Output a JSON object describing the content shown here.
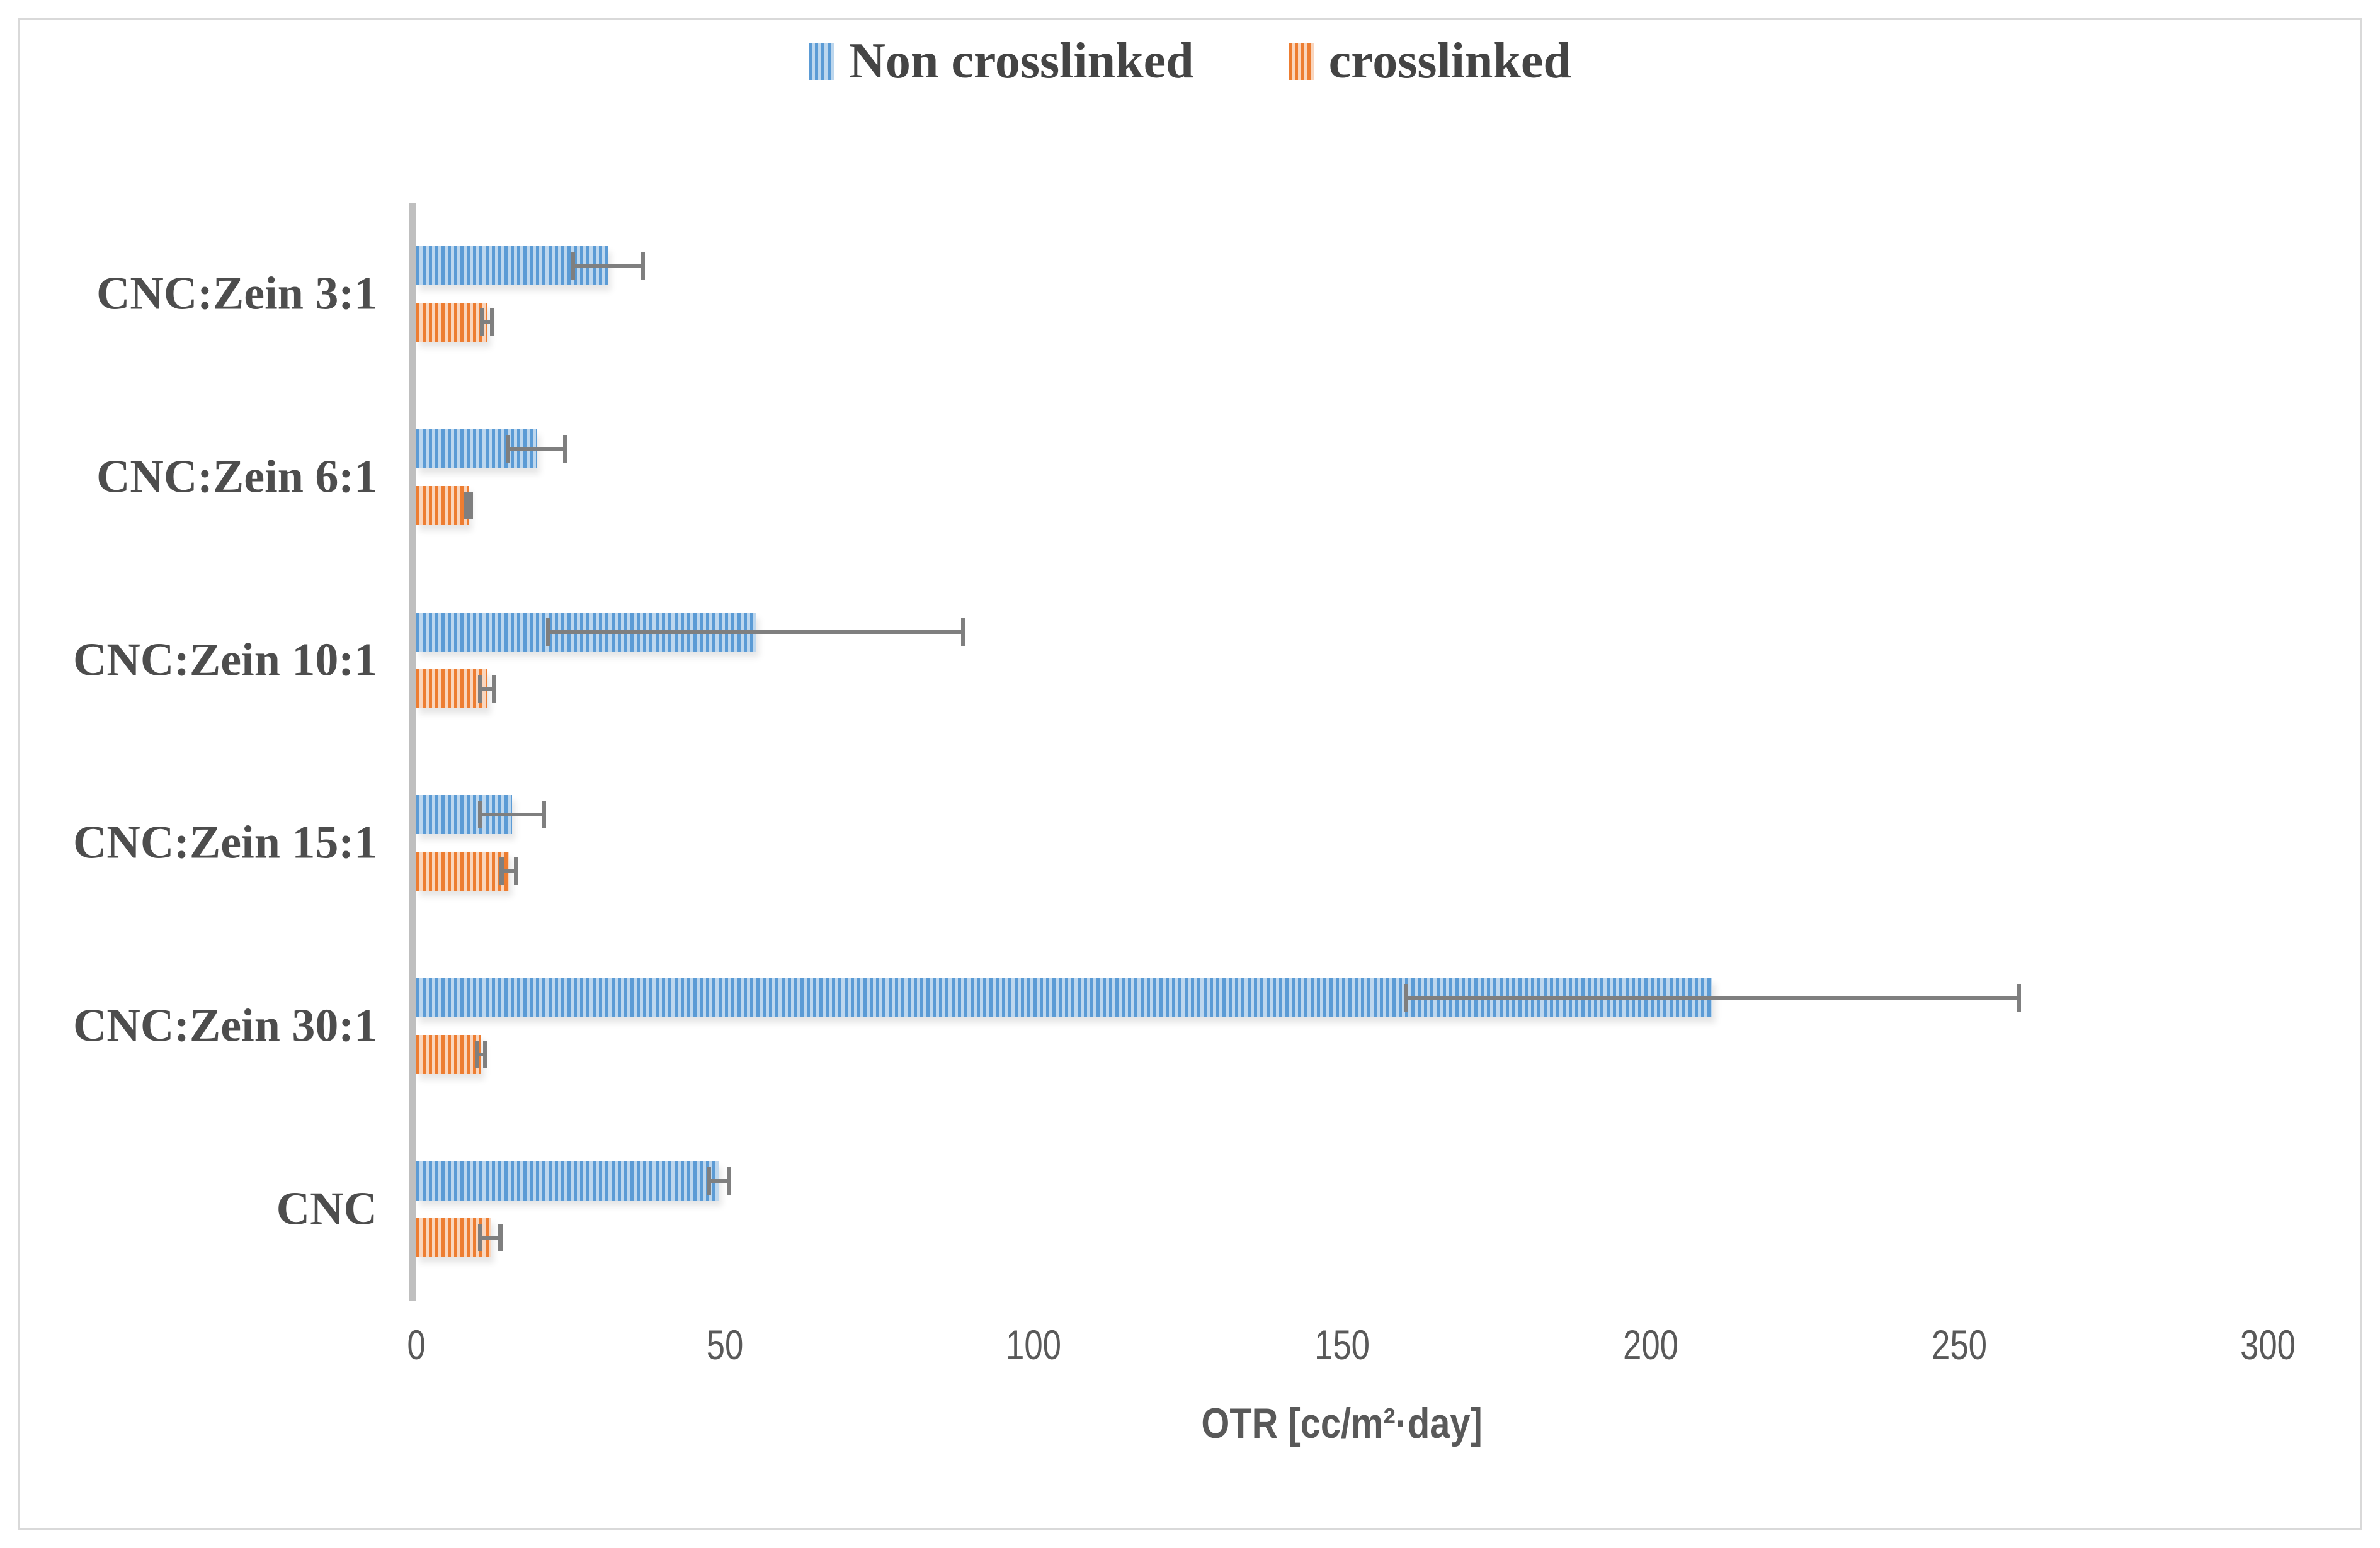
{
  "chart_data": {
    "type": "bar",
    "orientation": "horizontal",
    "xlabel": "OTR [cc/m²·day]",
    "xlim": [
      0,
      300
    ],
    "xticks": [
      0,
      50,
      100,
      150,
      200,
      250,
      300
    ],
    "grid": false,
    "legend_position": "top-center",
    "categories": [
      "CNC:Zein 3:1",
      "CNC:Zein 6:1",
      "CNC:Zein 10:1",
      "CNC:Zein 15:1",
      "CNC:Zein 30:1",
      "CNC"
    ],
    "series": [
      {
        "name": "Non crosslinked",
        "color": "#5B9BD5",
        "color_light": "#BDD7EE",
        "pattern": "vertical-stripes",
        "values": [
          31,
          19.5,
          55,
          15.5,
          210,
          49
        ],
        "errors": [
          6,
          5,
          34,
          5.5,
          50,
          2
        ]
      },
      {
        "name": "crosslinked",
        "color": "#ED7D31",
        "color_light": "#F9D6BE",
        "pattern": "vertical-stripes",
        "values": [
          11.5,
          8.5,
          11.5,
          15,
          10.5,
          12
        ],
        "errors": [
          1.2,
          0.7,
          1.5,
          1.5,
          1,
          2
        ]
      }
    ],
    "error_bar_color": "#7F7F7F",
    "axis_line_color": "#BFBFBF",
    "text_color": "#595959",
    "border_color": "#D9D9D9"
  }
}
